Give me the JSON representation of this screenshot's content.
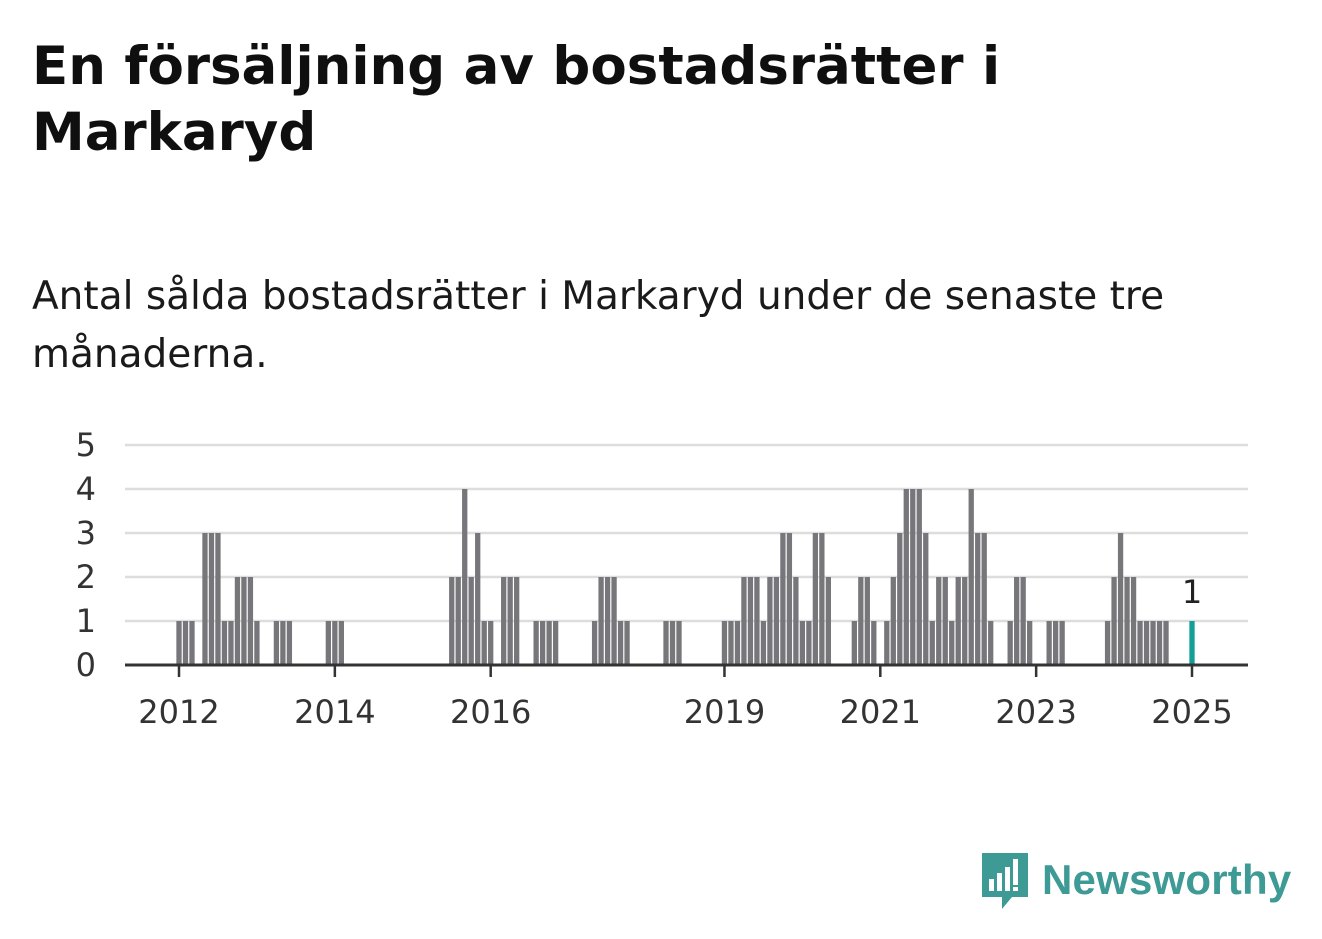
{
  "title": "En försäljning av bostadsrätter i Markaryd",
  "subtitle": "Antal sålda bostadsrätter i Markaryd under de senaste tre månaderna.",
  "brand": {
    "name": "Newsworthy",
    "color": "#3d9a95",
    "icon": "newsworthy-chart-bubble-icon"
  },
  "colors": {
    "bar": "#76767b",
    "highlight": "#139e96",
    "grid": "#dddddd",
    "axis": "#333333"
  },
  "chart_data": {
    "type": "bar",
    "ylim": [
      0,
      5
    ],
    "yticks": [
      0,
      1,
      2,
      3,
      4,
      5
    ],
    "xticks": [
      {
        "label": "2012",
        "date": "2012-01"
      },
      {
        "label": "2014",
        "date": "2014-01"
      },
      {
        "label": "2016",
        "date": "2016-01"
      },
      {
        "label": "2019",
        "date": "2019-01"
      },
      {
        "label": "2021",
        "date": "2021-01"
      },
      {
        "label": "2023",
        "date": "2023-01"
      },
      {
        "label": "2025",
        "date": "2025-01"
      }
    ],
    "grid": true,
    "xlabel": "",
    "ylabel": "",
    "series": [
      {
        "values": [
          {
            "date": "2012-01",
            "value": 1
          },
          {
            "date": "2012-02",
            "value": 1
          },
          {
            "date": "2012-03",
            "value": 1
          },
          {
            "date": "2012-05",
            "value": 3
          },
          {
            "date": "2012-06",
            "value": 3
          },
          {
            "date": "2012-07",
            "value": 3
          },
          {
            "date": "2012-08",
            "value": 1
          },
          {
            "date": "2012-09",
            "value": 1
          },
          {
            "date": "2012-10",
            "value": 2
          },
          {
            "date": "2012-11",
            "value": 2
          },
          {
            "date": "2012-12",
            "value": 2
          },
          {
            "date": "2013-01",
            "value": 1
          },
          {
            "date": "2013-04",
            "value": 1
          },
          {
            "date": "2013-05",
            "value": 1
          },
          {
            "date": "2013-06",
            "value": 1
          },
          {
            "date": "2013-12",
            "value": 1
          },
          {
            "date": "2014-01",
            "value": 1
          },
          {
            "date": "2014-02",
            "value": 1
          },
          {
            "date": "2015-07",
            "value": 2
          },
          {
            "date": "2015-08",
            "value": 2
          },
          {
            "date": "2015-09",
            "value": 4
          },
          {
            "date": "2015-10",
            "value": 2
          },
          {
            "date": "2015-11",
            "value": 3
          },
          {
            "date": "2015-12",
            "value": 1
          },
          {
            "date": "2016-01",
            "value": 1
          },
          {
            "date": "2016-03",
            "value": 2
          },
          {
            "date": "2016-04",
            "value": 2
          },
          {
            "date": "2016-05",
            "value": 2
          },
          {
            "date": "2016-08",
            "value": 1
          },
          {
            "date": "2016-09",
            "value": 1
          },
          {
            "date": "2016-10",
            "value": 1
          },
          {
            "date": "2016-11",
            "value": 1
          },
          {
            "date": "2017-05",
            "value": 1
          },
          {
            "date": "2017-06",
            "value": 2
          },
          {
            "date": "2017-07",
            "value": 2
          },
          {
            "date": "2017-08",
            "value": 2
          },
          {
            "date": "2017-09",
            "value": 1
          },
          {
            "date": "2017-10",
            "value": 1
          },
          {
            "date": "2018-04",
            "value": 1
          },
          {
            "date": "2018-05",
            "value": 1
          },
          {
            "date": "2018-06",
            "value": 1
          },
          {
            "date": "2019-01",
            "value": 1
          },
          {
            "date": "2019-02",
            "value": 1
          },
          {
            "date": "2019-03",
            "value": 1
          },
          {
            "date": "2019-04",
            "value": 2
          },
          {
            "date": "2019-05",
            "value": 2
          },
          {
            "date": "2019-06",
            "value": 2
          },
          {
            "date": "2019-07",
            "value": 1
          },
          {
            "date": "2019-08",
            "value": 2
          },
          {
            "date": "2019-09",
            "value": 2
          },
          {
            "date": "2019-10",
            "value": 3
          },
          {
            "date": "2019-11",
            "value": 3
          },
          {
            "date": "2019-12",
            "value": 2
          },
          {
            "date": "2020-01",
            "value": 1
          },
          {
            "date": "2020-02",
            "value": 1
          },
          {
            "date": "2020-03",
            "value": 3
          },
          {
            "date": "2020-04",
            "value": 3
          },
          {
            "date": "2020-05",
            "value": 2
          },
          {
            "date": "2020-09",
            "value": 1
          },
          {
            "date": "2020-10",
            "value": 2
          },
          {
            "date": "2020-11",
            "value": 2
          },
          {
            "date": "2020-12",
            "value": 1
          },
          {
            "date": "2021-02",
            "value": 1
          },
          {
            "date": "2021-03",
            "value": 2
          },
          {
            "date": "2021-04",
            "value": 3
          },
          {
            "date": "2021-05",
            "value": 4
          },
          {
            "date": "2021-06",
            "value": 4
          },
          {
            "date": "2021-07",
            "value": 4
          },
          {
            "date": "2021-08",
            "value": 3
          },
          {
            "date": "2021-09",
            "value": 1
          },
          {
            "date": "2021-10",
            "value": 2
          },
          {
            "date": "2021-11",
            "value": 2
          },
          {
            "date": "2021-12",
            "value": 1
          },
          {
            "date": "2022-01",
            "value": 2
          },
          {
            "date": "2022-02",
            "value": 2
          },
          {
            "date": "2022-03",
            "value": 4
          },
          {
            "date": "2022-04",
            "value": 3
          },
          {
            "date": "2022-05",
            "value": 3
          },
          {
            "date": "2022-06",
            "value": 1
          },
          {
            "date": "2022-09",
            "value": 1
          },
          {
            "date": "2022-10",
            "value": 2
          },
          {
            "date": "2022-11",
            "value": 2
          },
          {
            "date": "2022-12",
            "value": 1
          },
          {
            "date": "2023-03",
            "value": 1
          },
          {
            "date": "2023-04",
            "value": 1
          },
          {
            "date": "2023-05",
            "value": 1
          },
          {
            "date": "2023-12",
            "value": 1
          },
          {
            "date": "2024-01",
            "value": 2
          },
          {
            "date": "2024-02",
            "value": 3
          },
          {
            "date": "2024-03",
            "value": 2
          },
          {
            "date": "2024-04",
            "value": 2
          },
          {
            "date": "2024-05",
            "value": 1
          },
          {
            "date": "2024-06",
            "value": 1
          },
          {
            "date": "2024-07",
            "value": 1
          },
          {
            "date": "2024-08",
            "value": 1
          },
          {
            "date": "2024-09",
            "value": 1
          },
          {
            "date": "2025-01",
            "value": 1,
            "highlight": true,
            "label": "1"
          }
        ]
      }
    ]
  }
}
